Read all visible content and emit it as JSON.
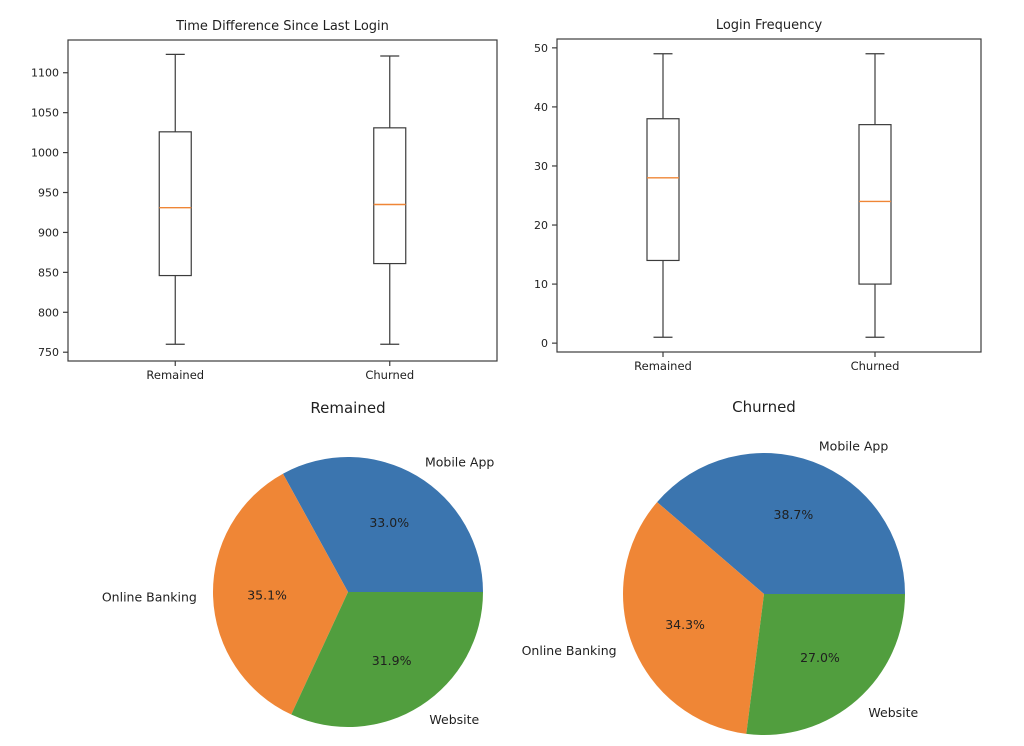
{
  "figure": {
    "background": "#ffffff",
    "text_color": "#1f1f1f",
    "axis_line_color": "#3c3c3c",
    "median_color": "#ef8636"
  },
  "chart_data": [
    {
      "id": "time_diff_box",
      "type": "boxplot",
      "title": "Time Difference Since Last Login",
      "categories": [
        "Remained",
        "Churned"
      ],
      "series": [
        {
          "name": "Remained",
          "whislo": 760,
          "q1": 846,
          "med": 931,
          "q3": 1026,
          "whishi": 1123
        },
        {
          "name": "Churned",
          "whislo": 760,
          "q1": 861,
          "med": 935,
          "q3": 1031,
          "whishi": 1121
        }
      ],
      "yticks": [
        750,
        800,
        850,
        900,
        950,
        1000,
        1050,
        1100
      ],
      "ylim": [
        739,
        1141
      ],
      "xlabel": "",
      "ylabel": "",
      "grid": false,
      "legend": "none",
      "box_fill": "none",
      "box_edge_color": "#3c3c3c",
      "median_color": "#ef8636"
    },
    {
      "id": "login_freq_box",
      "type": "boxplot",
      "title": "Login Frequency",
      "categories": [
        "Remained",
        "Churned"
      ],
      "series": [
        {
          "name": "Remained",
          "whislo": 1,
          "q1": 14,
          "med": 28,
          "q3": 38,
          "whishi": 49
        },
        {
          "name": "Churned",
          "whislo": 1,
          "q1": 10,
          "med": 24,
          "q3": 37,
          "whishi": 49
        }
      ],
      "yticks": [
        0,
        10,
        20,
        30,
        40,
        50
      ],
      "ylim": [
        -1.5,
        51.5
      ],
      "xlabel": "",
      "ylabel": "",
      "grid": false,
      "legend": "none",
      "box_fill": "none",
      "box_edge_color": "#3c3c3c",
      "median_color": "#ef8636"
    },
    {
      "id": "remained_pie",
      "type": "pie",
      "title": "Remained",
      "labels": [
        "Mobile App",
        "Online Banking",
        "Website"
      ],
      "values": [
        33.0,
        35.1,
        31.9
      ],
      "pct_labels": [
        "33.0%",
        "35.1%",
        "31.9%"
      ],
      "colors": [
        "#3b75af",
        "#ef8636",
        "#519e3e"
      ],
      "start_angle": 0,
      "direction": "counterclockwise",
      "legend": "none"
    },
    {
      "id": "churned_pie",
      "type": "pie",
      "title": "Churned",
      "labels": [
        "Mobile App",
        "Online Banking",
        "Website"
      ],
      "values": [
        38.7,
        34.3,
        27.0
      ],
      "pct_labels": [
        "38.7%",
        "34.3%",
        "27.0%"
      ],
      "colors": [
        "#3b75af",
        "#ef8636",
        "#519e3e"
      ],
      "start_angle": 0,
      "direction": "counterclockwise",
      "legend": "none"
    }
  ]
}
